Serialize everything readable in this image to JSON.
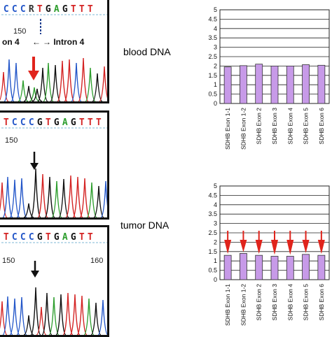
{
  "seq_panel_1": {
    "bases": [
      "C",
      "C",
      "C",
      "R",
      "T",
      "G",
      "A",
      "G",
      "T",
      "T",
      "T"
    ],
    "pos1": "150",
    "exon_label": "on 4",
    "intron_label": "Intron 4"
  },
  "seq_panel_2": {
    "bases": [
      "T",
      "C",
      "C",
      "C",
      "G",
      "T",
      "G",
      "A",
      "G",
      "T",
      "T",
      "T"
    ],
    "pos1": "150"
  },
  "seq_panel_3": {
    "bases": [
      "T",
      "C",
      "C",
      "C",
      "G",
      "T",
      "G",
      "A",
      "G",
      "T",
      "T"
    ],
    "pos1": "150",
    "pos2": "160"
  },
  "labels": {
    "blood": "blood DNA",
    "tumor": "tumor DNA"
  },
  "colors": {
    "A": "#2e9e2e",
    "C": "#2457c9",
    "G": "#111111",
    "T": "#d42424",
    "bar": "#c79ae8",
    "arrow_red": "#e0241c"
  },
  "chart_data": [
    {
      "type": "bar",
      "title": "",
      "categories": [
        "SDHB Exon 1-1",
        "SDHB Exon 1-2",
        "SDHB Exon 2",
        "SDHB Exon 3",
        "SDHB Exon 4",
        "SDHB Exon 5",
        "SDHB Exon 6"
      ],
      "values": [
        1.95,
        2.02,
        2.1,
        2.0,
        2.0,
        2.07,
        2.04
      ],
      "ylim": [
        0,
        5
      ],
      "yticks": [
        "0",
        "0.5",
        "1",
        "1.5",
        "2",
        "2.5",
        "3",
        "3.5",
        "4",
        "4.5",
        "5"
      ],
      "grid": true,
      "xlabel": "",
      "ylabel": ""
    },
    {
      "type": "bar",
      "title": "",
      "categories": [
        "SDHB Exon 1-1",
        "SDHB Exon 1-2",
        "SDHB Exon 2",
        "SDHB Exon 3",
        "SDHB Exon 4",
        "SDHB Exon 5",
        "SDHB Exon 6"
      ],
      "values": [
        1.3,
        1.4,
        1.3,
        1.25,
        1.25,
        1.35,
        1.3
      ],
      "ylim": [
        0,
        5
      ],
      "yticks": [
        "0",
        "0.5",
        "1",
        "1.5",
        "2",
        "2.5",
        "3",
        "3.5",
        "4",
        "4.5",
        "5"
      ],
      "grid": true,
      "arrows": true,
      "xlabel": "",
      "ylabel": ""
    }
  ]
}
